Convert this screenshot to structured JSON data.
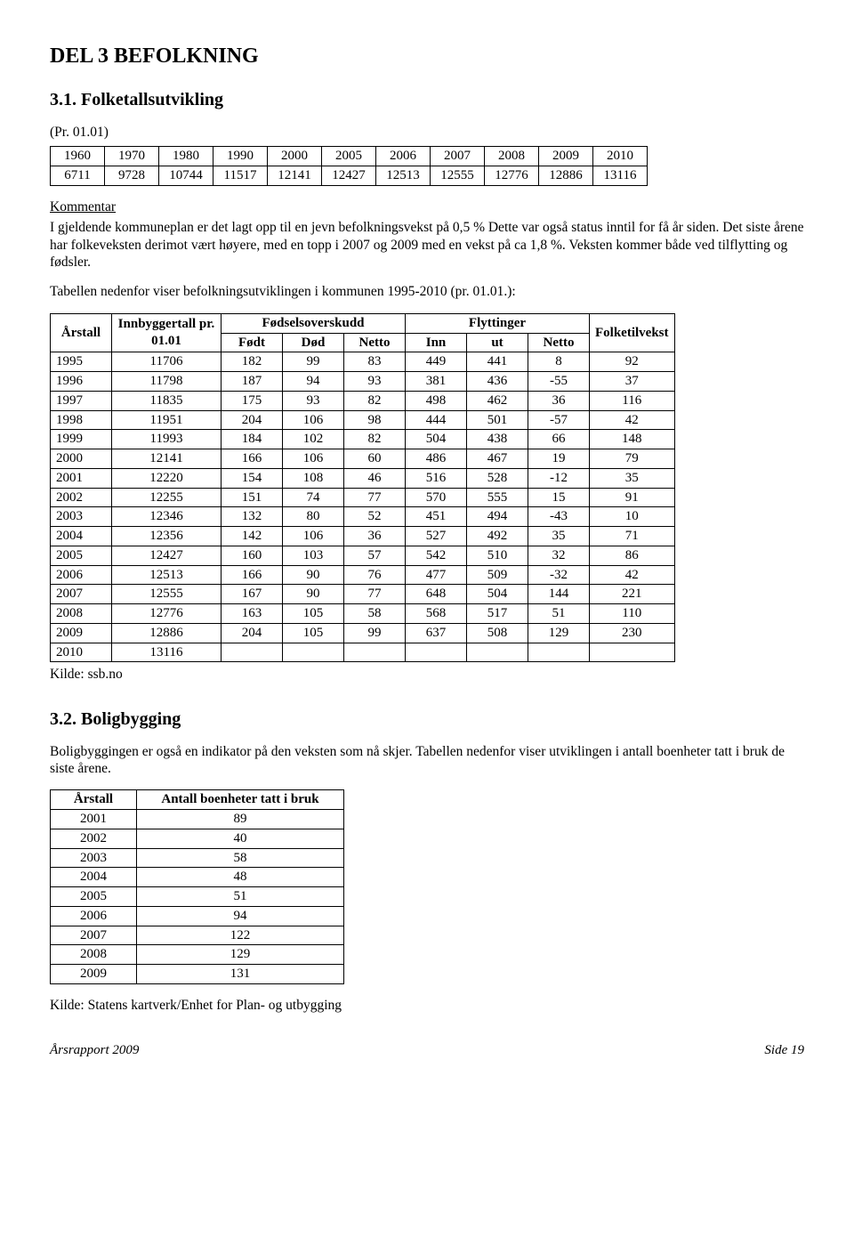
{
  "heading_main": "DEL 3 BEFOLKNING",
  "section_31": "3.1. Folketallsutvikling",
  "pr_line": "(Pr. 01.01)",
  "pop_history": {
    "years": [
      "1960",
      "1970",
      "1980",
      "1990",
      "2000",
      "2005",
      "2006",
      "2007",
      "2008",
      "2009",
      "2010"
    ],
    "values": [
      "6711",
      "9728",
      "10744",
      "11517",
      "12141",
      "12427",
      "12513",
      "12555",
      "12776",
      "12886",
      "13116"
    ]
  },
  "kommentar_label": "Kommentar",
  "kommentar_text": "I gjeldende kommuneplan er det lagt opp til en jevn befolkningsvekst på 0,5 % Dette var også status inntil for få år siden. Det siste årene har folkeveksten derimot vært høyere, med en topp i 2007 og 2009 med en vekst på ca 1,8 %. Veksten kommer både ved tilflytting og fødsler.",
  "tabell_intro": "Tabellen nedenfor viser befolkningsutviklingen i kommunen 1995-2010 (pr. 01.01.):",
  "pop_table": {
    "head": {
      "arstall": "Årstall",
      "innbyggertall": "Innbyggertall pr. 01.01",
      "fodselsoverskudd": "Fødselsoverskudd",
      "flyttinger": "Flyttinger",
      "folketilvekst": "Folketilvekst",
      "fodt": "Født",
      "dod": "Død",
      "netto1": "Netto",
      "inn": "Inn",
      "ut": "ut",
      "netto2": "Netto"
    },
    "rows": [
      [
        "1995",
        "11706",
        "182",
        "99",
        "83",
        "449",
        "441",
        "8",
        "92"
      ],
      [
        "1996",
        "11798",
        "187",
        "94",
        "93",
        "381",
        "436",
        "-55",
        "37"
      ],
      [
        "1997",
        "11835",
        "175",
        "93",
        "82",
        "498",
        "462",
        "36",
        "116"
      ],
      [
        "1998",
        "11951",
        "204",
        "106",
        "98",
        "444",
        "501",
        "-57",
        "42"
      ],
      [
        "1999",
        "11993",
        "184",
        "102",
        "82",
        "504",
        "438",
        "66",
        "148"
      ],
      [
        "2000",
        "12141",
        "166",
        "106",
        "60",
        "486",
        "467",
        "19",
        "79"
      ],
      [
        "2001",
        "12220",
        "154",
        "108",
        "46",
        "516",
        "528",
        "-12",
        "35"
      ],
      [
        "2002",
        "12255",
        "151",
        "74",
        "77",
        "570",
        "555",
        "15",
        "91"
      ],
      [
        "2003",
        "12346",
        "132",
        "80",
        "52",
        "451",
        "494",
        "-43",
        "10"
      ],
      [
        "2004",
        "12356",
        "142",
        "106",
        "36",
        "527",
        "492",
        "35",
        "71"
      ],
      [
        "2005",
        "12427",
        "160",
        "103",
        "57",
        "542",
        "510",
        "32",
        "86"
      ],
      [
        "2006",
        "12513",
        "166",
        "90",
        "76",
        "477",
        "509",
        "-32",
        "42"
      ],
      [
        "2007",
        "12555",
        "167",
        "90",
        "77",
        "648",
        "504",
        "144",
        "221"
      ],
      [
        "2008",
        "12776",
        "163",
        "105",
        "58",
        "568",
        "517",
        "51",
        "110"
      ],
      [
        "2009",
        "12886",
        "204",
        "105",
        "99",
        "637",
        "508",
        "129",
        "230"
      ],
      [
        "2010",
        "13116",
        "",
        "",
        "",
        "",
        "",
        "",
        ""
      ]
    ]
  },
  "kilde_ssb": "Kilde: ssb.no",
  "section_32": "3.2. Boligbygging",
  "bolig_text": "Boligbyggingen er også en indikator på den veksten som nå skjer. Tabellen nedenfor viser utviklingen i antall boenheter tatt i bruk de siste årene.",
  "housing_table": {
    "head": {
      "arstall": "Årstall",
      "antall": "Antall boenheter tatt i bruk"
    },
    "rows": [
      [
        "2001",
        "89"
      ],
      [
        "2002",
        "40"
      ],
      [
        "2003",
        "58"
      ],
      [
        "2004",
        "48"
      ],
      [
        "2005",
        "51"
      ],
      [
        "2006",
        "94"
      ],
      [
        "2007",
        "122"
      ],
      [
        "2008",
        "129"
      ],
      [
        "2009",
        "131"
      ]
    ]
  },
  "kilde_kartverk": "Kilde: Statens kartverk/Enhet for Plan- og utbygging",
  "footer_left": "Årsrapport 2009",
  "footer_right": "Side 19"
}
